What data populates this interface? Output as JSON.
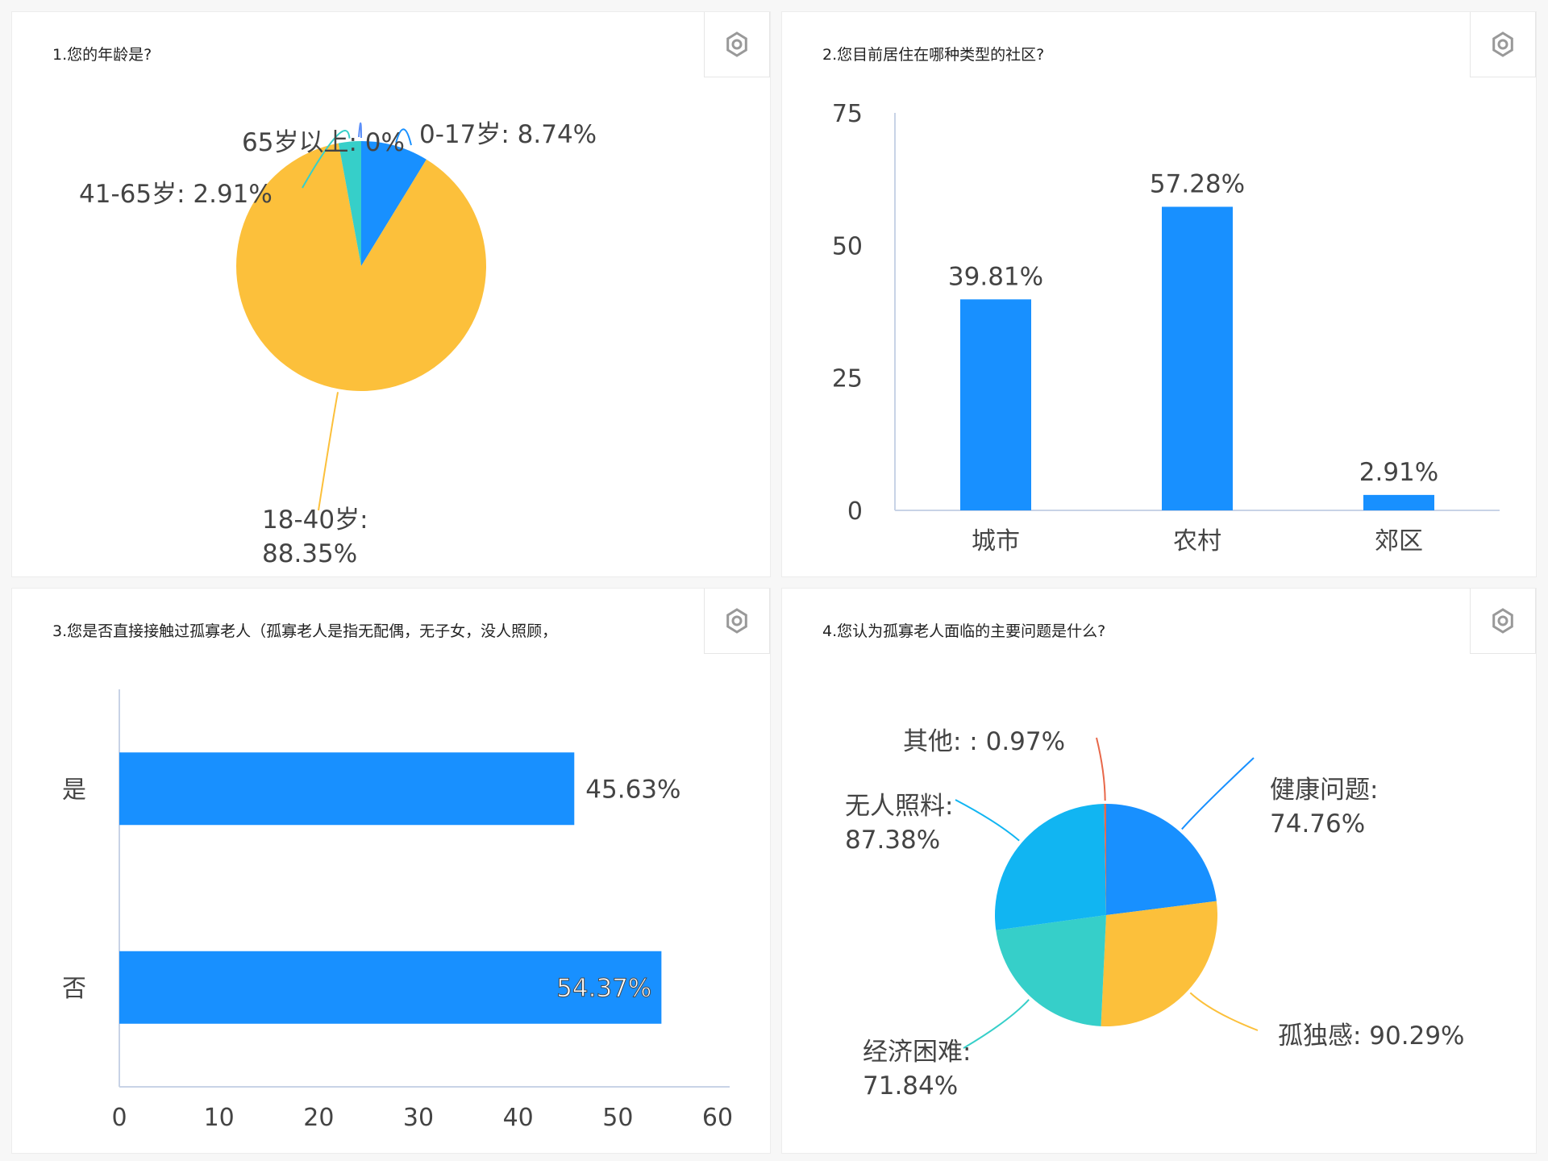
{
  "panels": [
    {
      "title": "1.您的年龄是?"
    },
    {
      "title": "2.您目前居住在哪种类型的社区?"
    },
    {
      "title": "3.您是否直接接触过孤寡老人（孤寡老人是指无配偶，无子女，没人照顾，"
    },
    {
      "title": "4.您认为孤寡老人面临的主要问题是什么?"
    }
  ],
  "icons": {
    "settings": "gear-icon"
  },
  "colors": {
    "yellow": "#fcc03b",
    "blue": "#1890ff",
    "teal": "#36cfc9",
    "sky": "#11b5f2",
    "orange": "#e8684a",
    "axis": "#c8d3e6",
    "text": "#444444"
  },
  "chart_data": [
    {
      "type": "pie",
      "slices": [
        {
          "label": "0-17岁: 8.74%",
          "value": 8.74,
          "color": "#1890ff"
        },
        {
          "label": "18-40岁: 88.35%",
          "value": 88.35,
          "color": "#fcc03b"
        },
        {
          "label": "41-65岁: 2.91%",
          "value": 2.91,
          "color": "#36cfc9"
        },
        {
          "label": "65岁以上: 0%",
          "value": 0,
          "color": "#5b8ff9"
        }
      ]
    },
    {
      "type": "bar",
      "categories": [
        "城市",
        "农村",
        "郊区"
      ],
      "values": [
        39.81,
        57.28,
        2.91
      ],
      "value_labels": [
        "39.81%",
        "57.28%",
        "2.91%"
      ],
      "ylim": [
        0,
        75
      ],
      "yticks": [
        0,
        25,
        50,
        75
      ]
    },
    {
      "type": "bar",
      "orientation": "horizontal",
      "categories": [
        "是",
        "否"
      ],
      "values": [
        45.63,
        54.37
      ],
      "value_labels": [
        "45.63%",
        "54.37%"
      ],
      "xlim": [
        0,
        60
      ],
      "xticks": [
        0,
        10,
        20,
        30,
        40,
        50,
        60
      ]
    },
    {
      "type": "pie",
      "slices": [
        {
          "label": "健康问题: 74.76%",
          "value": 74.76,
          "color": "#1890ff"
        },
        {
          "label": "孤独感: 90.29%",
          "value": 90.29,
          "color": "#fcc03b"
        },
        {
          "label": "经济困难: 71.84%",
          "value": 71.84,
          "color": "#36cfc9"
        },
        {
          "label": "无人照料: 87.38%",
          "value": 87.38,
          "color": "#11b5f2"
        },
        {
          "label": "其他: : 0.97%",
          "value": 0.97,
          "color": "#e8684a"
        }
      ]
    }
  ]
}
